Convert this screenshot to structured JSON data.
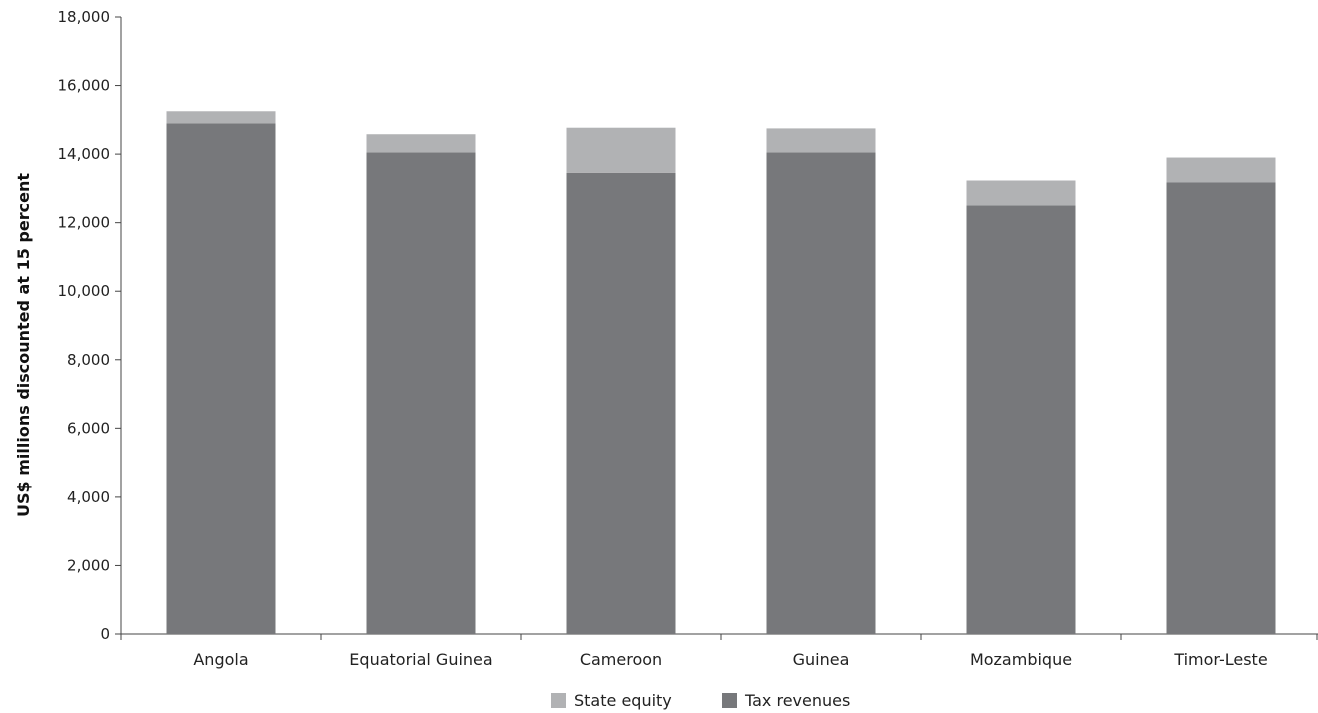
{
  "chart_data": {
    "type": "bar",
    "stacked": true,
    "categories": [
      "Angola",
      "Equatorial Guinea",
      "Cameroon",
      "Guinea",
      "Mozambique",
      "Timor-Leste"
    ],
    "series": [
      {
        "name": "Tax revenues",
        "color": "#77787b",
        "values": [
          14900,
          14050,
          13450,
          14050,
          12500,
          13180
        ]
      },
      {
        "name": "State equity",
        "color": "#b1b2b4",
        "values": [
          350,
          530,
          1320,
          700,
          730,
          720
        ]
      }
    ],
    "title": "",
    "xlabel": "",
    "ylabel": "US$ millions discounted at 15 percent",
    "ylim": [
      0,
      18000
    ],
    "yticks": [
      0,
      2000,
      4000,
      6000,
      8000,
      10000,
      12000,
      14000,
      16000,
      18000
    ],
    "ytick_labels": [
      "0",
      "2,000",
      "4,000",
      "6,000",
      "8,000",
      "10,000",
      "12,000",
      "14,000",
      "16,000",
      "18,000"
    ],
    "grid": false,
    "legend": {
      "position": "bottom",
      "entries": [
        {
          "label": "State equity",
          "color": "#b1b2b4"
        },
        {
          "label": "Tax revenues",
          "color": "#77787b"
        }
      ]
    }
  }
}
